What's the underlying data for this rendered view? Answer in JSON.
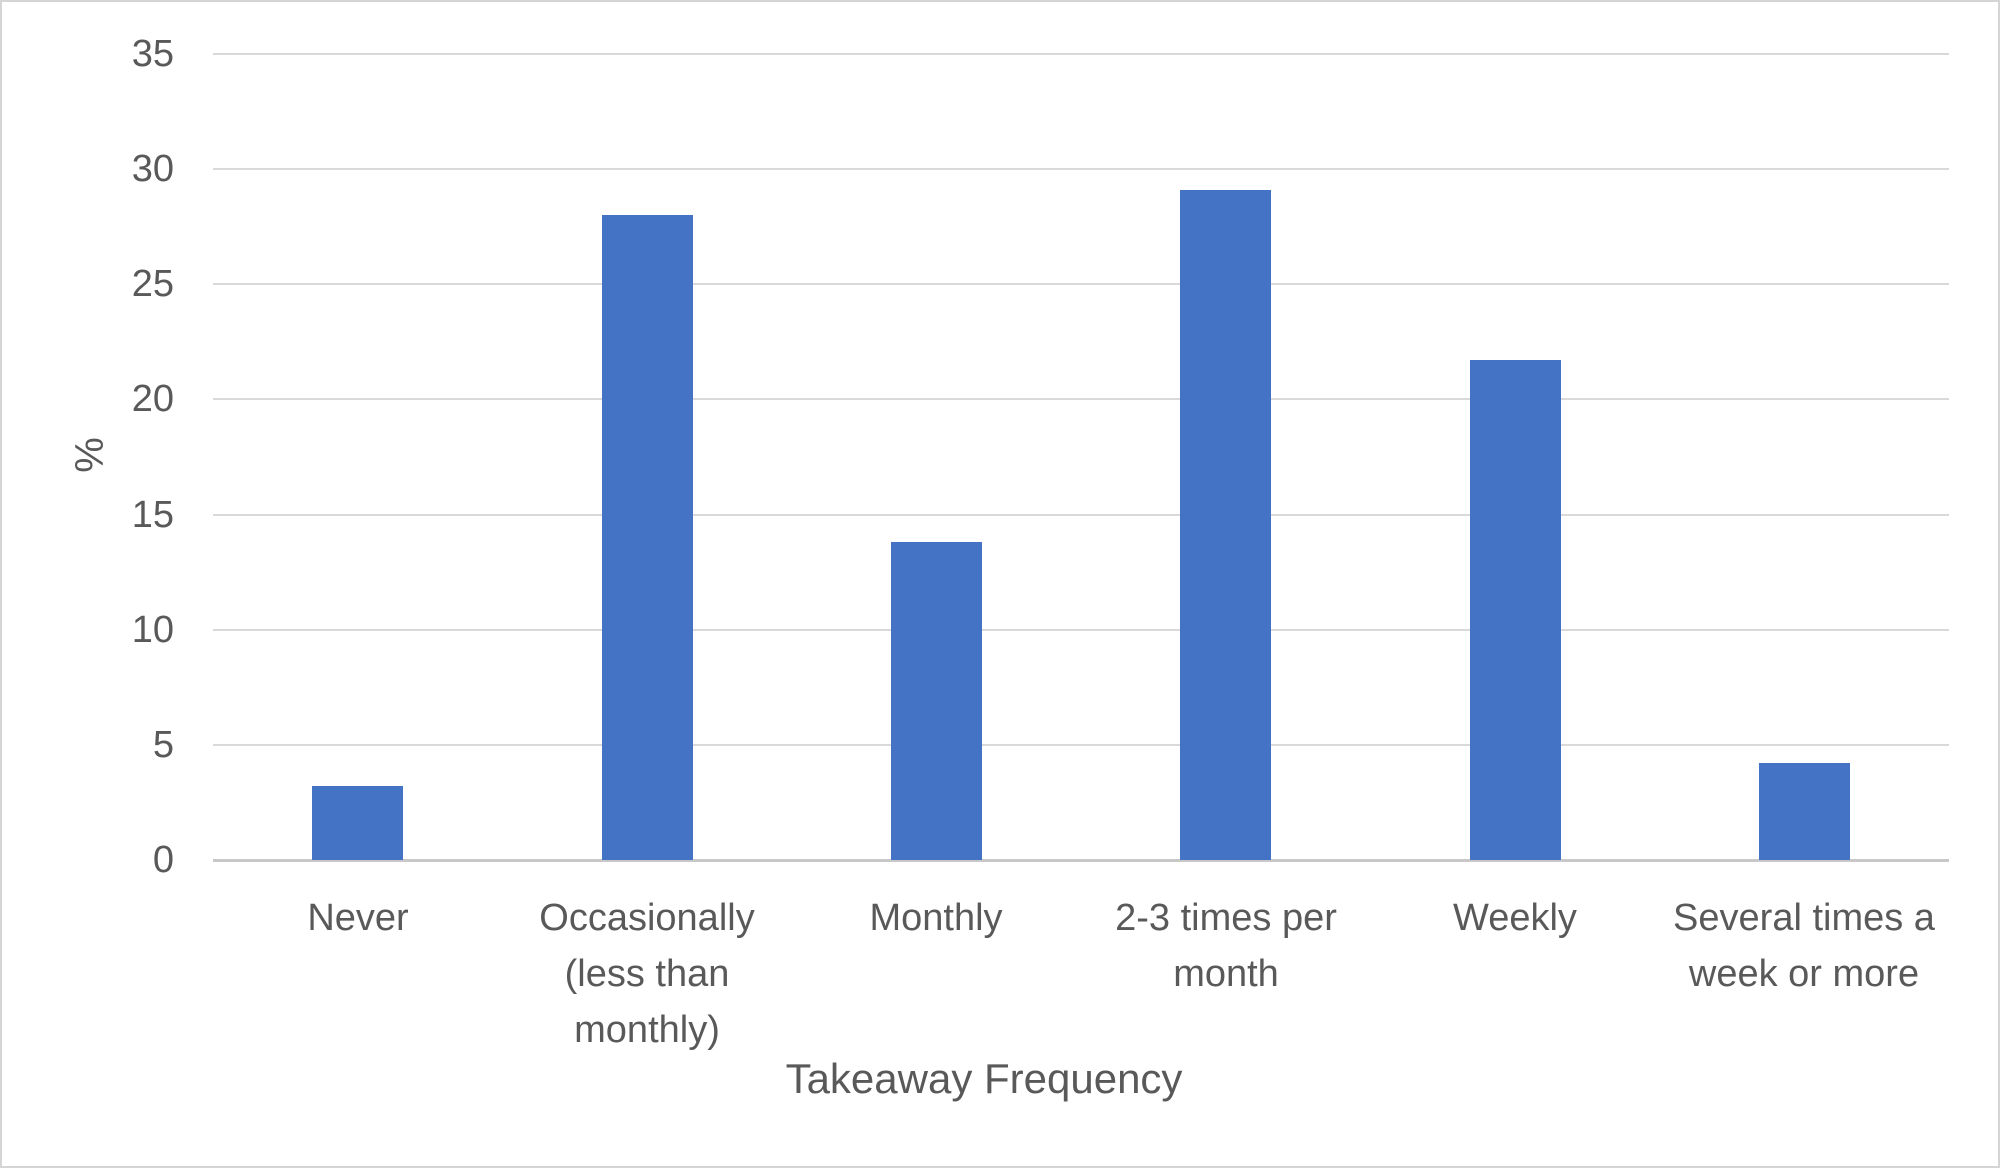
{
  "chart_data": {
    "type": "bar",
    "title": "",
    "xlabel": "Takeaway Frequency",
    "ylabel": "%",
    "categories": [
      "Never",
      "Occasionally (less than monthly)",
      "Monthly",
      "2-3 times per month",
      "Weekly",
      "Several times a week or more"
    ],
    "values": [
      3.2,
      28,
      13.8,
      29.1,
      21.7,
      4.2
    ],
    "x_tick_display": [
      "Never",
      "Occasionally\n(less than\nmonthly)",
      "Monthly",
      "2-3 times per\nmonth",
      "Weekly",
      "Several times a\nweek or more"
    ],
    "y_ticks": [
      0,
      5,
      10,
      15,
      20,
      25,
      30,
      35
    ],
    "ylim": [
      0,
      35
    ],
    "grid": "horizontal",
    "legend": "none",
    "series_count": 1
  },
  "colors": {
    "bar": "#4472C4",
    "gridline": "#D9D9D9",
    "axis_line": "#C8C8C8",
    "text": "#595959",
    "frame_border": "#D5D5D5",
    "background": "#FFFFFF"
  }
}
